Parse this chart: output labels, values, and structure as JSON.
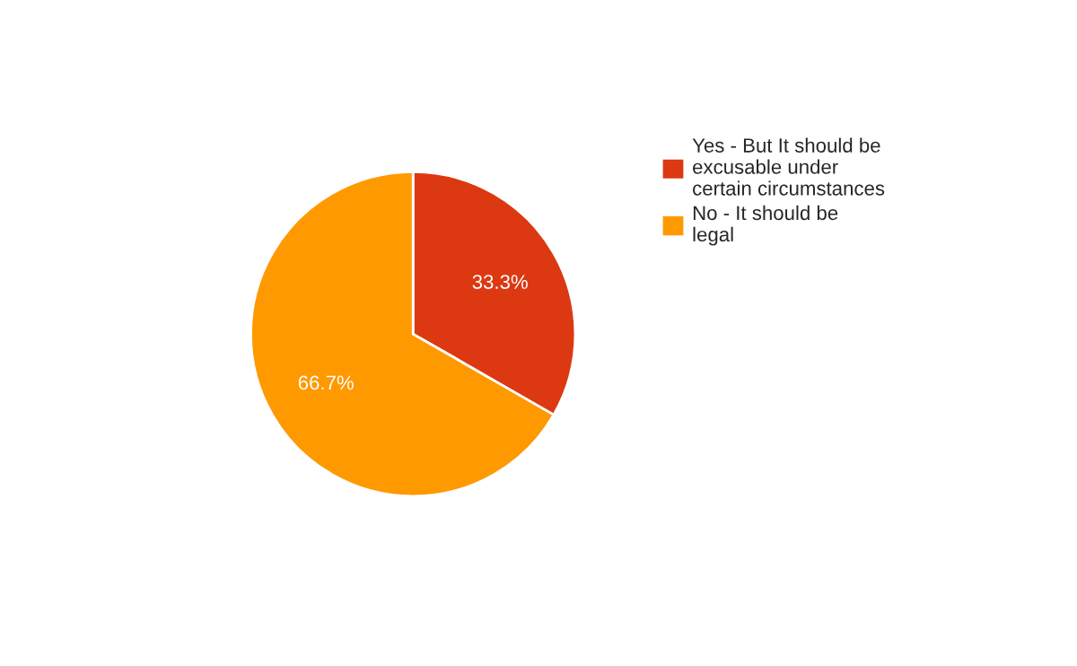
{
  "chart_data": {
    "type": "pie",
    "categories": [
      "Yes - But It should be excusable under certain circumstances",
      "No - It should be legal"
    ],
    "values": [
      33.3,
      66.7
    ],
    "colors": [
      "#dc3912",
      "#ff9900"
    ],
    "value_labels": [
      "33.3%",
      "66.7%"
    ],
    "legend": "right"
  }
}
